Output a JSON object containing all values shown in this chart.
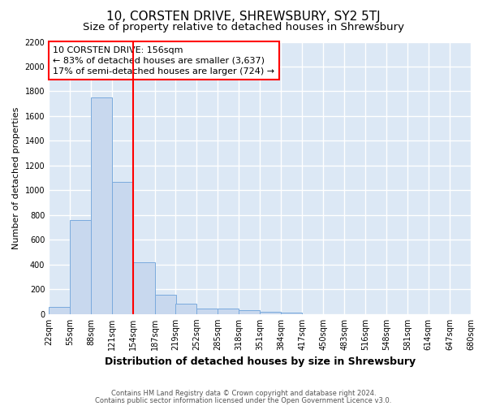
{
  "title": "10, CORSTEN DRIVE, SHREWSBURY, SY2 5TJ",
  "subtitle": "Size of property relative to detached houses in Shrewsbury",
  "xlabel": "Distribution of detached houses by size in Shrewsbury",
  "ylabel": "Number of detached properties",
  "footer1": "Contains HM Land Registry data © Crown copyright and database right 2024.",
  "footer2": "Contains public sector information licensed under the Open Government Licence v3.0.",
  "annotation_line1": "10 CORSTEN DRIVE: 156sqm",
  "annotation_line2": "← 83% of detached houses are smaller (3,637)",
  "annotation_line3": "17% of semi-detached houses are larger (724) →",
  "bar_values": [
    55,
    760,
    1750,
    1070,
    420,
    155,
    85,
    45,
    45,
    30,
    20,
    15,
    0,
    0,
    0,
    0,
    0,
    0,
    0,
    0
  ],
  "bin_edges": [
    22,
    55,
    88,
    121,
    154,
    187,
    219,
    252,
    285,
    318,
    351,
    384,
    417,
    450,
    483,
    516,
    548,
    581,
    614,
    647,
    680
  ],
  "tick_labels": [
    "22sqm",
    "55sqm",
    "88sqm",
    "121sqm",
    "154sqm",
    "187sqm",
    "219sqm",
    "252sqm",
    "285sqm",
    "318sqm",
    "351sqm",
    "384sqm",
    "417sqm",
    "450sqm",
    "483sqm",
    "516sqm",
    "548sqm",
    "581sqm",
    "614sqm",
    "647sqm",
    "680sqm"
  ],
  "bar_color": "#c8d8ee",
  "bar_edge_color": "#7aaadd",
  "red_line_x": 154,
  "ylim": [
    0,
    2200
  ],
  "yticks": [
    0,
    200,
    400,
    600,
    800,
    1000,
    1200,
    1400,
    1600,
    1800,
    2000,
    2200
  ],
  "bg_color": "#ffffff",
  "plot_bg_color": "#dce8f5",
  "grid_color": "#ffffff",
  "title_fontsize": 11,
  "subtitle_fontsize": 9.5,
  "xlabel_fontsize": 9,
  "ylabel_fontsize": 8,
  "tick_fontsize": 7,
  "footer_fontsize": 6,
  "annotation_fontsize": 8,
  "figsize": [
    6.0,
    5.0
  ],
  "dpi": 100
}
